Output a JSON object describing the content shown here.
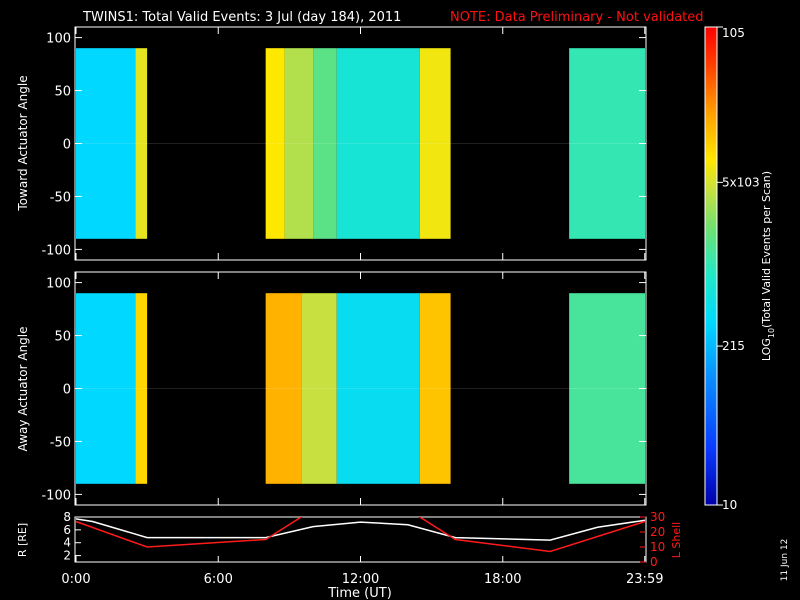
{
  "header": {
    "title": "TWINS1: Total Valid Events:  3 Jul (day 184), 2011",
    "note": "NOTE: Data Preliminary - Not validated"
  },
  "colors": {
    "background": "#000000",
    "axes": "#ffffff",
    "note": "#ff1010",
    "r_line": "#ffffff",
    "lshell_line": "#ff1a1a",
    "colormap": [
      "#0000aa",
      "#0a3cff",
      "#0a96ff",
      "#00d8ff",
      "#20e8c8",
      "#70e070",
      "#c8e040",
      "#ffe800",
      "#ffa000",
      "#ff4000",
      "#ff0000"
    ]
  },
  "panels": {
    "toward_ylabel": "Toward Actuator Angle",
    "away_ylabel": "Away Actuator Angle",
    "xlabel": "Time (UT)",
    "colorbar_label": "LOG10(Total Valid Events per Scan)",
    "r_ylabel": "R [RE]",
    "lshell_ylabel": "L Shell",
    "side_date": "11 Jun 12"
  },
  "chart_data": [
    {
      "type": "heatmap",
      "title": "Toward Actuator Angle",
      "xlabel": "",
      "ylabel": "Toward Actuator Angle",
      "x_units": "hours UT",
      "xlim": [
        0,
        24
      ],
      "ylim": [
        -110,
        110
      ],
      "y_ticks": [
        "100",
        "50",
        "0",
        "-50",
        "-100"
      ],
      "data_angle_range": [
        -90,
        90
      ],
      "log_color_range": [
        1,
        5
      ],
      "segments": [
        {
          "start": 0.0,
          "end": 2.5,
          "log_value": 2.2
        },
        {
          "start": 2.5,
          "end": 3.0,
          "log_value": 3.6
        },
        {
          "start": 3.0,
          "end": 8.0,
          "log_value": null
        },
        {
          "start": 8.0,
          "end": 8.8,
          "log_value": 3.8
        },
        {
          "start": 8.8,
          "end": 10.0,
          "log_value": 3.3
        },
        {
          "start": 10.0,
          "end": 11.0,
          "log_value": 2.9
        },
        {
          "start": 11.0,
          "end": 14.5,
          "log_value": 2.5
        },
        {
          "start": 14.5,
          "end": 15.8,
          "log_value": 3.7
        },
        {
          "start": 15.8,
          "end": 20.8,
          "log_value": null
        },
        {
          "start": 20.8,
          "end": 24.0,
          "log_value": 2.7
        }
      ]
    },
    {
      "type": "heatmap",
      "title": "Away Actuator Angle",
      "xlabel": "Time (UT)",
      "ylabel": "Away Actuator Angle",
      "x_units": "hours UT",
      "xlim": [
        0,
        24
      ],
      "ylim": [
        -110,
        110
      ],
      "y_ticks": [
        "100",
        "50",
        "0",
        "-50",
        "-100"
      ],
      "x_ticks": [
        "0:00",
        "6:00",
        "12:00",
        "18:00",
        "23:59"
      ],
      "data_angle_range": [
        -90,
        90
      ],
      "log_color_range": [
        1,
        5
      ],
      "segments": [
        {
          "start": 0.0,
          "end": 2.5,
          "log_value": 2.2
        },
        {
          "start": 2.5,
          "end": 3.0,
          "log_value": 3.9
        },
        {
          "start": 3.0,
          "end": 8.0,
          "log_value": null
        },
        {
          "start": 8.0,
          "end": 9.5,
          "log_value": 4.1
        },
        {
          "start": 9.5,
          "end": 11.0,
          "log_value": 3.4
        },
        {
          "start": 11.0,
          "end": 14.5,
          "log_value": 2.3
        },
        {
          "start": 14.5,
          "end": 15.8,
          "log_value": 4.0
        },
        {
          "start": 15.8,
          "end": 20.8,
          "log_value": null
        },
        {
          "start": 20.8,
          "end": 24.0,
          "log_value": 2.8
        }
      ]
    },
    {
      "type": "line",
      "title": "",
      "xlabel": "Time (UT)",
      "ylabel": "R [RE]",
      "ylim_left": [
        1,
        8
      ],
      "ylim_right": [
        0,
        30
      ],
      "y_ticks_left": [
        "8",
        "6",
        "4",
        "2"
      ],
      "y_ticks_right": [
        "30",
        "20",
        "10",
        "0"
      ],
      "series": [
        {
          "name": "R [RE]",
          "axis": "left",
          "x": [
            0,
            0.7,
            3,
            8,
            10,
            12,
            14,
            16,
            20,
            22,
            24
          ],
          "y": [
            7.7,
            7.3,
            4.8,
            4.8,
            6.5,
            7.2,
            6.8,
            4.8,
            4.4,
            6.4,
            7.5
          ]
        },
        {
          "name": "L Shell",
          "axis": "right",
          "x": [
            0,
            3,
            8,
            10,
            14,
            16,
            20,
            24
          ],
          "y": [
            27,
            10,
            15,
            35,
            35,
            15,
            7,
            27
          ]
        }
      ]
    },
    {
      "type": "colorbar",
      "label": "LOG10(Total Valid Events per Scan)",
      "tick_labels": [
        "10^5",
        "5x10^3",
        "215",
        "10"
      ],
      "tick_log_values": [
        5,
        3.7,
        2.33,
        1
      ]
    }
  ]
}
